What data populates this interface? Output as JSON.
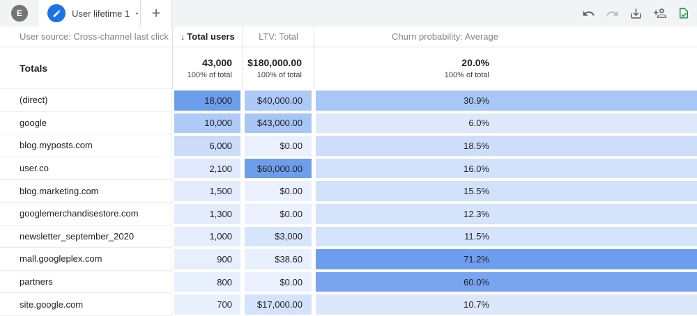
{
  "colors": {
    "accent": "#1a73e8",
    "saved_green": "#1e8e3e",
    "toolbar_icon": "#5f6368",
    "disabled_icon": "#b8bbbf"
  },
  "topbar": {
    "avatar_letter": "E",
    "tab_label": "User lifetime 1",
    "new_tab_label": "+",
    "action_icons": [
      "undo-icon",
      "redo-icon",
      "download-icon",
      "add-people-icon",
      "file-check-icon"
    ]
  },
  "table": {
    "sort_indicator": "↓",
    "headers": {
      "source": "User source: Cross-channel last click",
      "users": "Total users",
      "ltv": "LTV: Total",
      "churn": "Churn probability: Average"
    },
    "totals": {
      "label": "Totals",
      "users": "43,000",
      "users_sub": "100% of total",
      "ltv": "$180,000.00",
      "ltv_sub": "100% of total",
      "churn": "20.0%",
      "churn_sub": "100% of total"
    },
    "rows": [
      {
        "source": "(direct)",
        "users": {
          "value": "18,000",
          "color": "#6d9eeb"
        },
        "ltv": {
          "value": "$40,000.00",
          "color": "#adc9f6"
        },
        "churn": {
          "value": "30.9%",
          "color": "#a9c7f6"
        }
      },
      {
        "source": "google",
        "users": {
          "value": "10,000",
          "color": "#aecaf6"
        },
        "ltv": {
          "value": "$43,000.00",
          "color": "#a8c6f5"
        },
        "churn": {
          "value": "6.0%",
          "color": "#dee8fb"
        }
      },
      {
        "source": "blog.myposts.com",
        "users": {
          "value": "6,000",
          "color": "#cbdcf9"
        },
        "ltv": {
          "value": "$0.00",
          "color": "#eaf0fd"
        },
        "churn": {
          "value": "18.5%",
          "color": "#cedefa"
        }
      },
      {
        "source": "user.co",
        "users": {
          "value": "2,100",
          "color": "#e1eafc"
        },
        "ltv": {
          "value": "$60,000.00",
          "color": "#6d9eeb"
        },
        "churn": {
          "value": "16.0%",
          "color": "#d1e1fa"
        }
      },
      {
        "source": "blog.marketing.com",
        "users": {
          "value": "1,500",
          "color": "#e3ecfc"
        },
        "ltv": {
          "value": "$0.00",
          "color": "#eaf0fd"
        },
        "churn": {
          "value": "15.5%",
          "color": "#d1e1fa"
        }
      },
      {
        "source": "googlemerchandisestore.com",
        "users": {
          "value": "1,300",
          "color": "#e4ecfc"
        },
        "ltv": {
          "value": "$0.00",
          "color": "#eaf0fd"
        },
        "churn": {
          "value": "12.3%",
          "color": "#d5e3fb"
        }
      },
      {
        "source": "newsletter_september_2020",
        "users": {
          "value": "1,000",
          "color": "#e5edfc"
        },
        "ltv": {
          "value": "$3,000",
          "color": "#d7e5fc"
        },
        "churn": {
          "value": "11.5%",
          "color": "#d6e4fb"
        }
      },
      {
        "source": "mall.googleplex.com",
        "users": {
          "value": "900",
          "color": "#e7eefc"
        },
        "ltv": {
          "value": "$38.60",
          "color": "#e9f0fd"
        },
        "churn": {
          "value": "71.2%",
          "color": "#6d9dee"
        }
      },
      {
        "source": "partners",
        "users": {
          "value": "800",
          "color": "#e8effd"
        },
        "ltv": {
          "value": "$0.00",
          "color": "#eaf0fd"
        },
        "churn": {
          "value": "60.0%",
          "color": "#79a4ef"
        }
      },
      {
        "source": "site.google.com",
        "users": {
          "value": "700",
          "color": "#e9f0fd"
        },
        "ltv": {
          "value": "$17,000.00",
          "color": "#d4e3fb"
        },
        "churn": {
          "value": "10.7%",
          "color": "#dce7fb"
        }
      }
    ]
  }
}
